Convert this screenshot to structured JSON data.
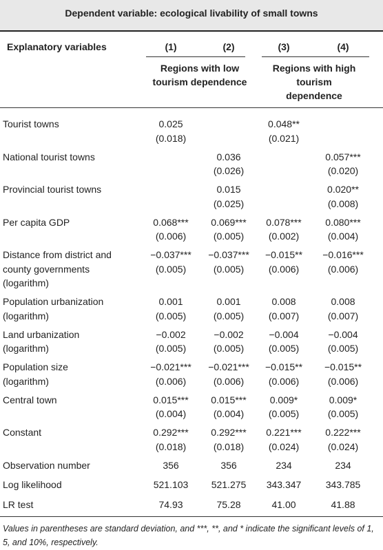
{
  "header": {
    "title": "Dependent variable: ecological livability of small towns",
    "row_label": "Explanatory variables",
    "columns": [
      "(1)",
      "(2)",
      "(3)",
      "(4)"
    ],
    "groups": [
      "Regions with low tourism dependence",
      "Regions with high tourism dependence"
    ]
  },
  "table": {
    "rows": [
      {
        "label": [
          "Tourist towns"
        ],
        "cells": [
          [
            "0.025",
            "(0.018)"
          ],
          null,
          [
            "0.048**",
            "(0.021)"
          ],
          null
        ]
      },
      {
        "label": [
          "National tourist towns"
        ],
        "cells": [
          null,
          [
            "0.036",
            "(0.026)"
          ],
          null,
          [
            "0.057***",
            "(0.020)"
          ]
        ]
      },
      {
        "label": [
          "Provincial tourist towns"
        ],
        "cells": [
          null,
          [
            "0.015",
            "(0.025)"
          ],
          null,
          [
            "0.020**",
            "(0.008)"
          ]
        ]
      },
      {
        "label": [
          "Per capita GDP"
        ],
        "cells": [
          [
            "0.068***",
            "(0.006)"
          ],
          [
            "0.069***",
            "(0.005)"
          ],
          [
            "0.078***",
            "(0.002)"
          ],
          [
            "0.080***",
            "(0.004)"
          ]
        ]
      },
      {
        "label": [
          "Distance from district and",
          "county governments",
          "(logarithm)"
        ],
        "cells": [
          [
            "−0.037***",
            "(0.005)"
          ],
          [
            "−0.037***",
            "(0.005)"
          ],
          [
            "−0.015**",
            "(0.006)"
          ],
          [
            "−0.016***",
            "(0.006)"
          ]
        ]
      },
      {
        "label": [
          "Population urbanization",
          "(logarithm)"
        ],
        "cells": [
          [
            "0.001",
            "(0.005)"
          ],
          [
            "0.001",
            "(0.005)"
          ],
          [
            "0.008",
            "(0.007)"
          ],
          [
            "0.008",
            "(0.007)"
          ]
        ]
      },
      {
        "label": [
          "Land urbanization",
          "(logarithm)"
        ],
        "cells": [
          [
            "−0.002",
            "(0.005)"
          ],
          [
            "−0.002",
            "(0.005)"
          ],
          [
            "−0.004",
            "(0.005)"
          ],
          [
            "−0.004",
            "(0.005)"
          ]
        ]
      },
      {
        "label": [
          "Population size",
          "(logarithm)"
        ],
        "cells": [
          [
            "−0.021***",
            "(0.006)"
          ],
          [
            "−0.021***",
            "(0.006)"
          ],
          [
            "−0.015**",
            "(0.006)"
          ],
          [
            "−0.015**",
            "(0.006)"
          ]
        ]
      },
      {
        "label": [
          "Central town"
        ],
        "cells": [
          [
            "0.015***",
            "(0.004)"
          ],
          [
            "0.015***",
            "(0.004)"
          ],
          [
            "0.009*",
            "(0.005)"
          ],
          [
            "0.009*",
            "(0.005)"
          ]
        ]
      },
      {
        "label": [
          "Constant"
        ],
        "cells": [
          [
            "0.292***",
            "(0.018)"
          ],
          [
            "0.292***",
            "(0.018)"
          ],
          [
            "0.221***",
            "(0.024)"
          ],
          [
            "0.222***",
            "(0.024)"
          ]
        ]
      },
      {
        "label": [
          "Observation number"
        ],
        "cells": [
          [
            "356"
          ],
          [
            "356"
          ],
          [
            "234"
          ],
          [
            "234"
          ]
        ]
      },
      {
        "label": [
          "Log likelihood"
        ],
        "cells": [
          [
            "521.103"
          ],
          [
            "521.275"
          ],
          [
            "343.347"
          ],
          [
            "343.785"
          ]
        ]
      },
      {
        "label": [
          "LR test"
        ],
        "cells": [
          [
            "74.93"
          ],
          [
            "75.28"
          ],
          [
            "41.00"
          ],
          [
            "41.88"
          ]
        ]
      }
    ]
  },
  "footnote": "Values in parentheses are standard deviation, and ***, **, and * indicate the significant levels of 1, 5, and 10%, respectively."
}
